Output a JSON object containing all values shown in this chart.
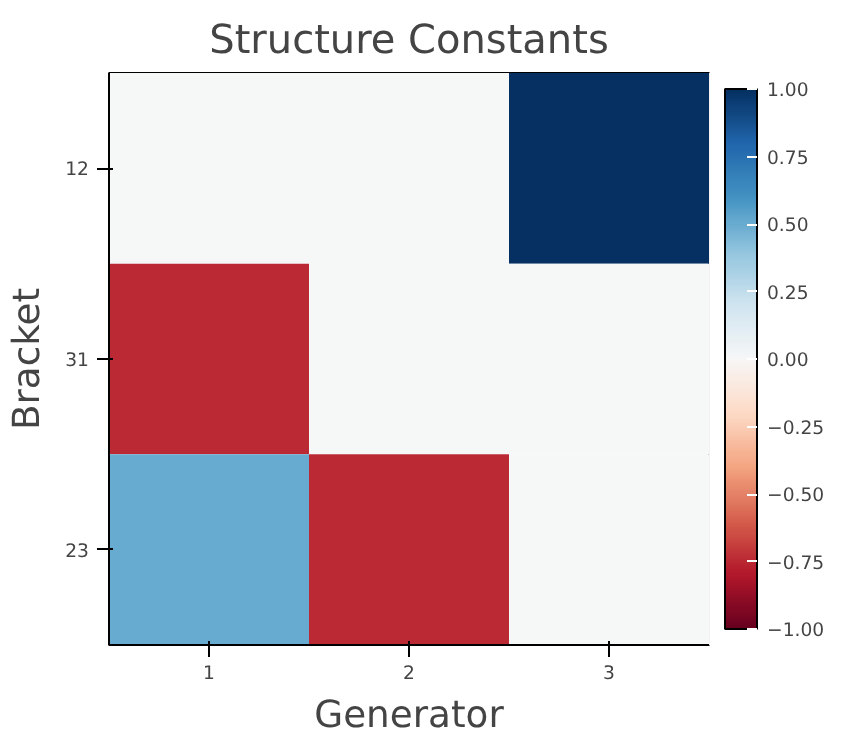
{
  "chart_data": {
    "type": "heatmap",
    "title": "Structure Constants",
    "xlabel": "Generator",
    "ylabel": "Bracket",
    "categories": [
      "1",
      "2",
      "3"
    ],
    "y_categories": [
      "12",
      "31",
      "23"
    ],
    "cells": [
      [
        0,
        0,
        1
      ],
      [
        -0.75,
        0,
        0
      ],
      [
        0.5,
        -0.75,
        0
      ]
    ],
    "clim": [
      -1,
      1
    ],
    "cticks": [
      {
        "value": -1,
        "label": "−1.00"
      },
      {
        "value": -0.75,
        "label": "−0.75"
      },
      {
        "value": -0.5,
        "label": "−0.50"
      },
      {
        "value": -0.25,
        "label": "−0.25"
      },
      {
        "value": 0,
        "label": "0.00"
      },
      {
        "value": 0.25,
        "label": "0.25"
      },
      {
        "value": 0.5,
        "label": "0.50"
      },
      {
        "value": 0.75,
        "label": "0.75"
      },
      {
        "value": 1,
        "label": "1.00"
      }
    ],
    "grid": false
  }
}
